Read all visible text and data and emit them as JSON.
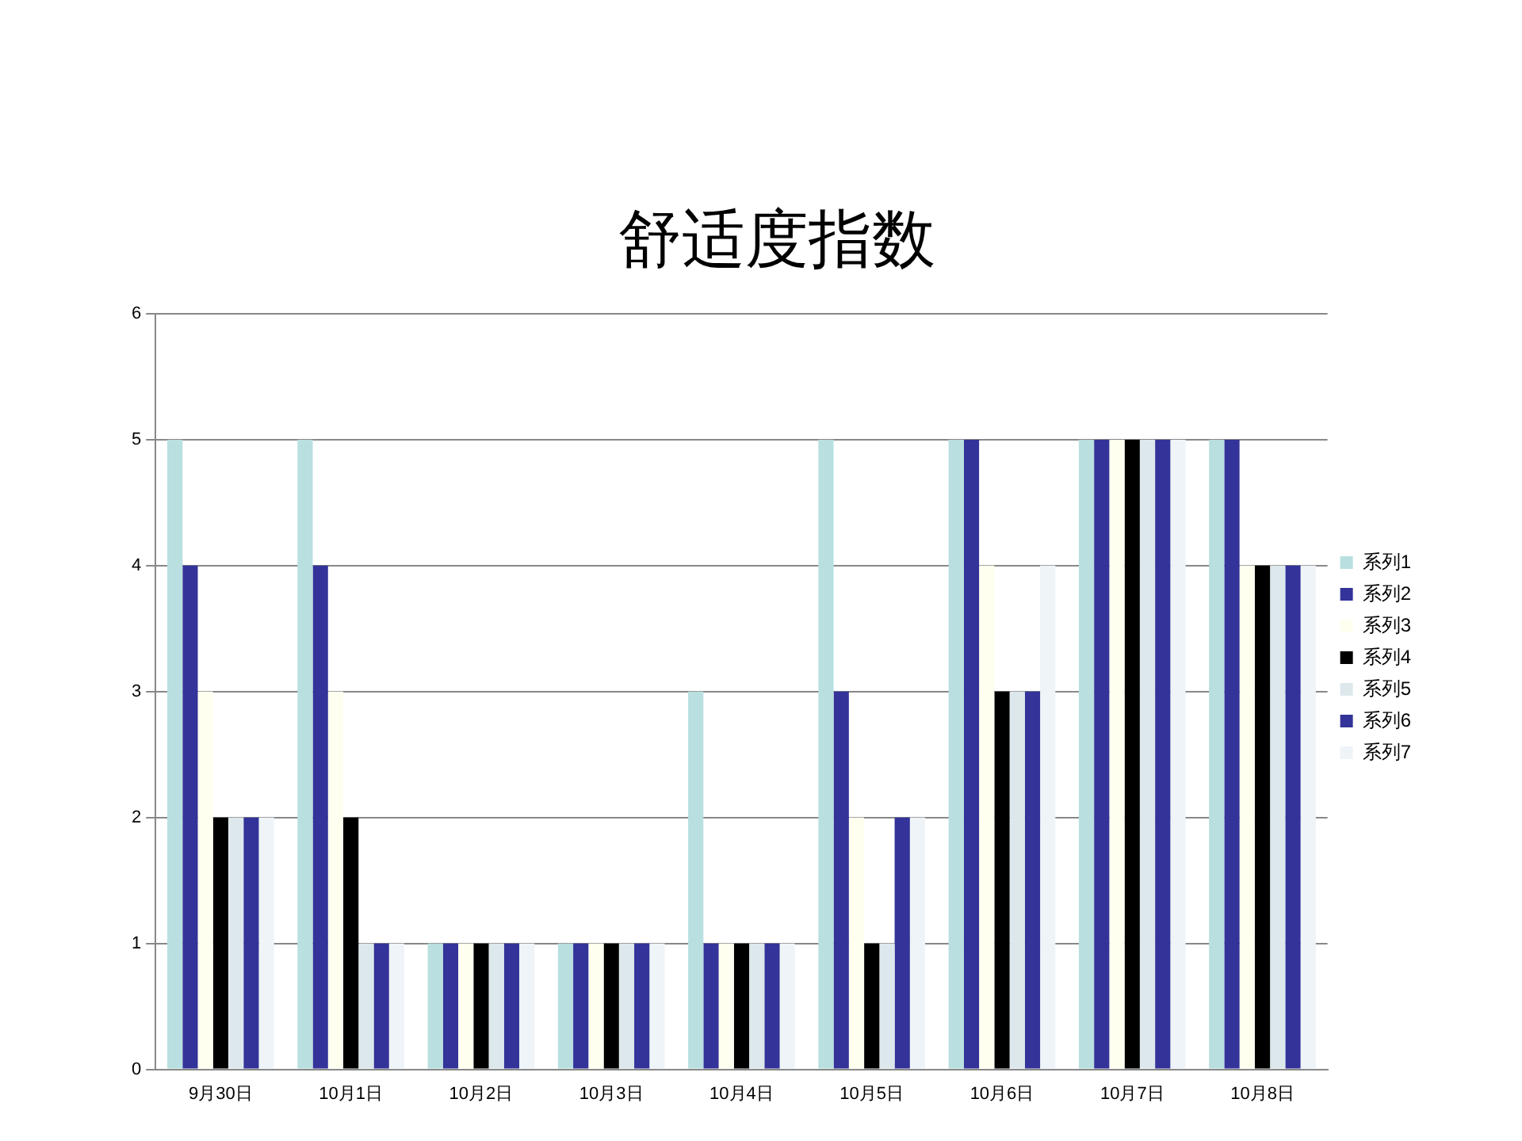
{
  "chart_data": {
    "type": "bar",
    "title": "舒适度指数",
    "categories": [
      "9月30日",
      "10月1日",
      "10月2日",
      "10月3日",
      "10月4日",
      "10月5日",
      "10月6日",
      "10月7日",
      "10月8日"
    ],
    "series": [
      {
        "name": "系列1",
        "color": "#b9dfe0",
        "values": [
          5,
          5,
          1,
          1,
          3,
          5,
          5,
          5,
          5
        ]
      },
      {
        "name": "系列2",
        "color": "#333399",
        "values": [
          4,
          4,
          1,
          1,
          1,
          3,
          5,
          5,
          5
        ]
      },
      {
        "name": "系列3",
        "color": "#fffff0",
        "values": [
          3,
          3,
          1,
          1,
          1,
          2,
          4,
          5,
          4
        ]
      },
      {
        "name": "系列4",
        "color": "#000000",
        "values": [
          2,
          2,
          1,
          1,
          1,
          1,
          3,
          5,
          4
        ]
      },
      {
        "name": "系列5",
        "color": "#dde8ec",
        "values": [
          2,
          1,
          1,
          1,
          1,
          1,
          3,
          5,
          4
        ]
      },
      {
        "name": "系列6",
        "color": "#333399",
        "values": [
          2,
          1,
          1,
          1,
          1,
          2,
          3,
          5,
          4
        ]
      },
      {
        "name": "系列7",
        "color": "#eef4f8",
        "values": [
          2,
          1,
          1,
          1,
          1,
          2,
          4,
          5,
          4
        ]
      }
    ],
    "ylim": [
      0,
      6
    ],
    "yticks": [
      0,
      1,
      2,
      3,
      4,
      5,
      6
    ],
    "grid": "y",
    "legend": "right"
  }
}
